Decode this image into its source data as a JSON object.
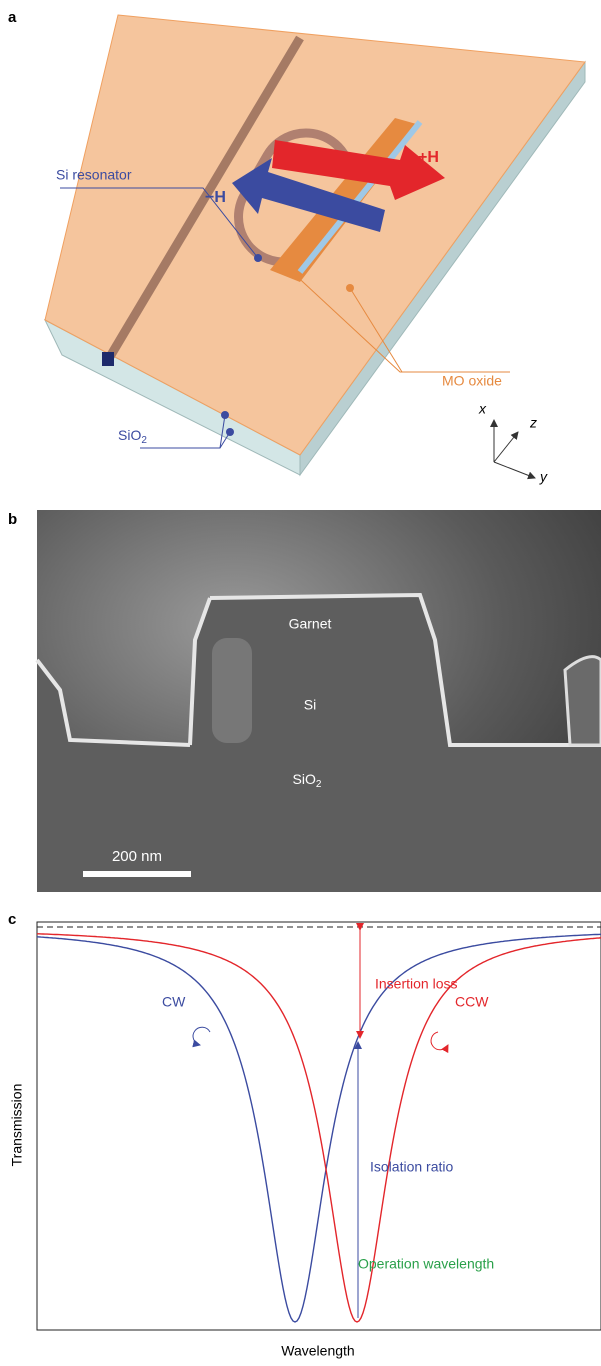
{
  "panel_a": {
    "label": "a",
    "si_resonator": "Si resonator",
    "minus_h": "−H",
    "plus_h": "+H",
    "mo_oxide": "MO oxide",
    "sio2": {
      "text": "SiO",
      "subscript": "2"
    },
    "axis_x": "x",
    "axis_y": "y",
    "axis_z": "z"
  },
  "panel_b": {
    "label": "b",
    "garnet": "Garnet",
    "si": "Si",
    "sio2": {
      "text": "SiO",
      "subscript": "2"
    },
    "scale_bar": "200 nm"
  },
  "panel_c": {
    "label": "c",
    "insertion_loss": "Insertion loss",
    "cw": "CW",
    "ccw": "CCW",
    "isolation_ratio": "Isolation ratio",
    "operation_wavelength": "Operation wavelength",
    "y_label": "Transmission",
    "x_label": "Wavelength"
  }
}
